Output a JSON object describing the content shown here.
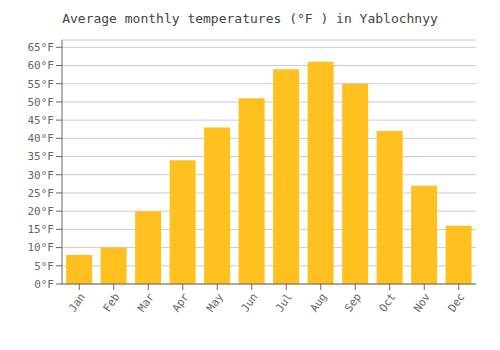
{
  "chart_data": {
    "type": "bar",
    "title": "Average monthly temperatures (°F ) in Yablochnyy",
    "categories": [
      "Jan",
      "Feb",
      "Mar",
      "Apr",
      "May",
      "Jun",
      "Jul",
      "Aug",
      "Sep",
      "Oct",
      "Nov",
      "Dec"
    ],
    "values": [
      8,
      10,
      20,
      34,
      43,
      51,
      59,
      61,
      55,
      42,
      27,
      16
    ],
    "color": "#FFC020",
    "ylim": [
      0,
      67
    ],
    "yticks": [
      {
        "value": 0,
        "label": "0°F"
      },
      {
        "value": 5,
        "label": "5°F"
      },
      {
        "value": 10,
        "label": "10°F"
      },
      {
        "value": 15,
        "label": "15°F"
      },
      {
        "value": 20,
        "label": "20°F"
      },
      {
        "value": 25,
        "label": "25°F"
      },
      {
        "value": 30,
        "label": "30°F"
      },
      {
        "value": 35,
        "label": "35°F"
      },
      {
        "value": 40,
        "label": "40°F"
      },
      {
        "value": 45,
        "label": "45°F"
      },
      {
        "value": 50,
        "label": "50°F"
      },
      {
        "value": 55,
        "label": "55°F"
      },
      {
        "value": 60,
        "label": "60°F"
      },
      {
        "value": 65,
        "label": "65°F"
      }
    ],
    "grid": true
  }
}
